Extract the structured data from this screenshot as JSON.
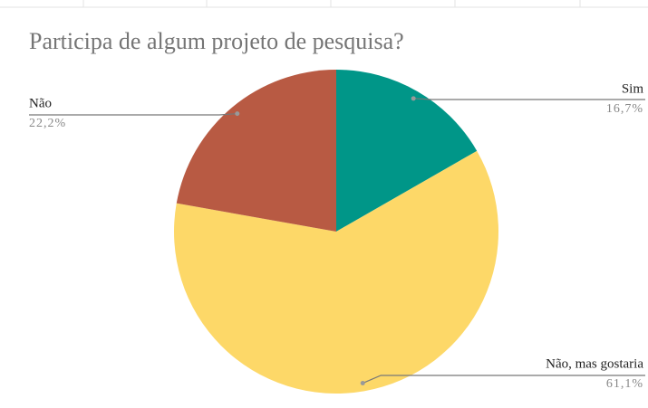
{
  "chart_data": {
    "type": "pie",
    "title": "Participa de algum projeto de pesquisa?",
    "categories": [
      "Sim",
      "Não, mas gostaria",
      "Não"
    ],
    "values": [
      16.7,
      61.1,
      22.2
    ],
    "value_labels": [
      "16,7%",
      "61,1%",
      "22,2%"
    ],
    "colors": [
      "#009688",
      "#fdd868",
      "#b85a43"
    ]
  }
}
